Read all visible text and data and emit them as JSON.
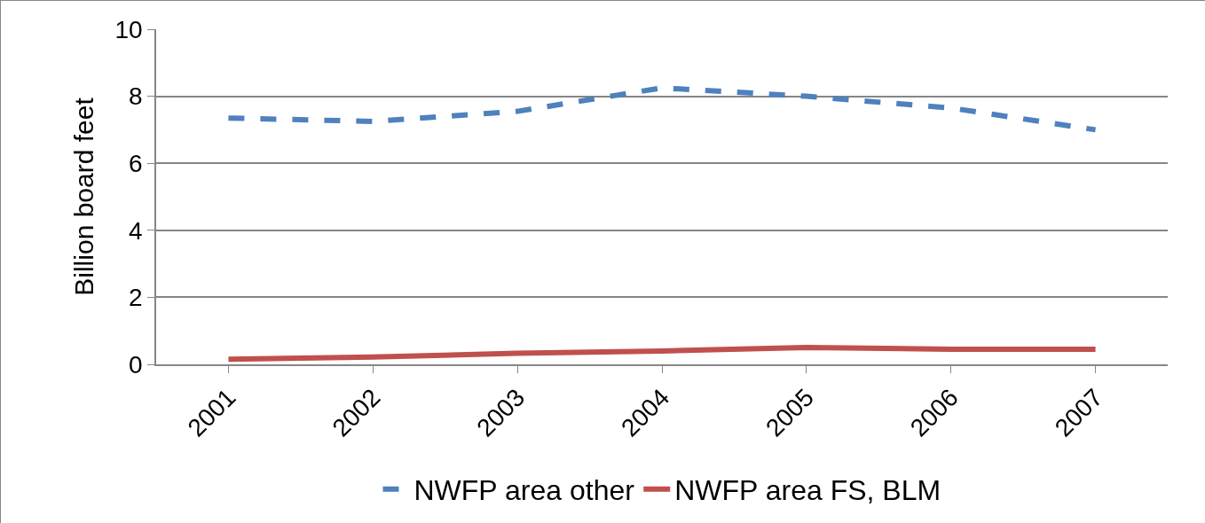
{
  "chart_data": {
    "type": "line",
    "ylabel": "Billion board feet",
    "categories": [
      "2001",
      "2002",
      "2003",
      "2004",
      "2005",
      "2006",
      "2007"
    ],
    "series": [
      {
        "name": "NWFP area other",
        "color": "#4f81bd",
        "line_style": "dashed",
        "values": [
          7.35,
          7.25,
          7.55,
          8.25,
          8.0,
          7.65,
          7.0
        ]
      },
      {
        "name": "NWFP area FS, BLM",
        "color": "#c0504d",
        "line_style": "solid",
        "values": [
          0.15,
          0.22,
          0.33,
          0.4,
          0.5,
          0.45,
          0.45
        ]
      }
    ],
    "ylim": [
      0,
      10
    ],
    "yticks": [
      0,
      2,
      4,
      6,
      8,
      10
    ],
    "grid": "y",
    "legend": "bottom",
    "marker": "none"
  }
}
